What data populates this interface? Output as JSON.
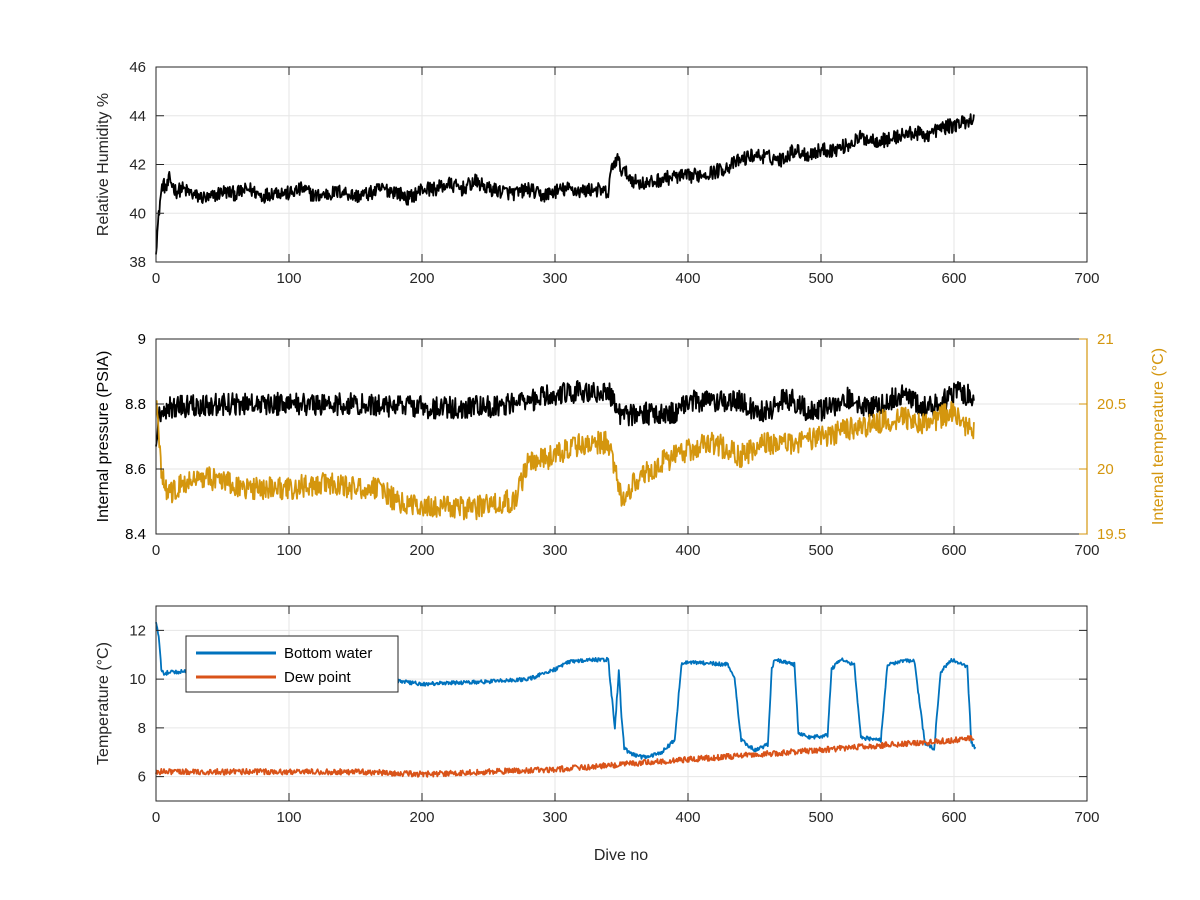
{
  "figure": {
    "xlabel": "Dive no",
    "colors": {
      "black": "#000000",
      "orange_temp": "#D4960E",
      "blue": "#0072BD",
      "red": "#D95319",
      "grid": "#E6E6E6",
      "axes": "#262626"
    }
  },
  "chart_data": [
    {
      "type": "line",
      "ylabel": "Relative Humidity %",
      "xlim": [
        0,
        700
      ],
      "ylim": [
        38,
        46
      ],
      "xticks": [
        0,
        100,
        200,
        300,
        400,
        500,
        600,
        700
      ],
      "xtick_labels": [
        "0",
        "100",
        "200",
        "300",
        "400",
        "500",
        "600",
        "700"
      ],
      "yticks": [
        38,
        40,
        42,
        44,
        46
      ],
      "ytick_labels": [
        "38",
        "40",
        "42",
        "44",
        "46"
      ],
      "grid": true,
      "series": [
        {
          "color": "#000000",
          "x": [
            0,
            1,
            3,
            5,
            8,
            10,
            15,
            20,
            30,
            40,
            50,
            60,
            70,
            80,
            90,
            100,
            110,
            120,
            130,
            140,
            150,
            160,
            170,
            180,
            190,
            200,
            210,
            220,
            230,
            240,
            250,
            260,
            270,
            280,
            290,
            300,
            310,
            320,
            330,
            340,
            343,
            347,
            350,
            360,
            370,
            380,
            390,
            400,
            410,
            420,
            430,
            440,
            450,
            460,
            470,
            480,
            490,
            500,
            510,
            520,
            530,
            540,
            550,
            560,
            570,
            580,
            590,
            600,
            610,
            615
          ],
          "y": [
            38.6,
            39.2,
            40.5,
            41.2,
            41.0,
            41.4,
            40.9,
            41.0,
            40.7,
            40.6,
            40.9,
            40.8,
            41.0,
            40.7,
            40.9,
            40.8,
            41.0,
            40.7,
            40.8,
            40.9,
            40.7,
            40.8,
            41.0,
            40.9,
            40.6,
            41.0,
            41.0,
            41.2,
            41.0,
            41.3,
            41.0,
            40.9,
            40.8,
            41.0,
            40.7,
            40.9,
            41.0,
            40.9,
            41.0,
            40.8,
            42.0,
            42.2,
            41.8,
            41.3,
            41.2,
            41.4,
            41.5,
            41.5,
            41.6,
            41.7,
            41.9,
            42.2,
            42.4,
            42.3,
            42.2,
            42.6,
            42.4,
            42.6,
            42.6,
            42.8,
            43.1,
            43.0,
            43.0,
            43.2,
            43.3,
            43.2,
            43.5,
            43.6,
            43.8,
            43.9
          ],
          "noise": 0.3
        }
      ]
    },
    {
      "type": "line",
      "ylabel": "Internal pressure (PSIA)",
      "ylabel_right": "Internal temperature (°C)",
      "xlim": [
        0,
        700
      ],
      "ylim": [
        8.4,
        9.0
      ],
      "ylim_right": [
        19.5,
        21.0
      ],
      "xticks": [
        0,
        100,
        200,
        300,
        400,
        500,
        600,
        700
      ],
      "xtick_labels": [
        "0",
        "100",
        "200",
        "300",
        "400",
        "500",
        "600",
        "700"
      ],
      "yticks": [
        8.4,
        8.6,
        8.8,
        9.0
      ],
      "ytick_labels": [
        "8.4",
        "8.6",
        "8.8",
        "9"
      ],
      "yticks_right": [
        19.5,
        20.0,
        20.5,
        21.0
      ],
      "ytick_labels_right": [
        "19.5",
        "20",
        "20.5",
        "21"
      ],
      "grid": true,
      "series": [
        {
          "axis": "left",
          "color": "#000000",
          "x": [
            0,
            2,
            5,
            10,
            50,
            100,
            150,
            200,
            250,
            280,
            300,
            320,
            340,
            345,
            350,
            360,
            380,
            390,
            400,
            420,
            440,
            450,
            460,
            470,
            480,
            490,
            500,
            510,
            520,
            530,
            540,
            560,
            580,
            590,
            600,
            610,
            615
          ],
          "y": [
            8.7,
            8.76,
            8.78,
            8.79,
            8.8,
            8.8,
            8.8,
            8.79,
            8.79,
            8.81,
            8.83,
            8.84,
            8.84,
            8.8,
            8.76,
            8.77,
            8.77,
            8.77,
            8.81,
            8.81,
            8.81,
            8.78,
            8.78,
            8.81,
            8.81,
            8.78,
            8.78,
            8.79,
            8.82,
            8.79,
            8.79,
            8.83,
            8.79,
            8.8,
            8.84,
            8.83,
            8.83
          ],
          "noise": 0.035
        },
        {
          "axis": "right",
          "color": "#D4960E",
          "x": [
            0,
            2,
            4,
            6,
            8,
            15,
            30,
            50,
            70,
            100,
            130,
            150,
            170,
            180,
            200,
            220,
            240,
            260,
            270,
            280,
            300,
            320,
            340,
            347,
            350,
            360,
            380,
            400,
            420,
            440,
            460,
            480,
            500,
            520,
            540,
            560,
            580,
            600,
            610,
            615
          ],
          "y": [
            20.6,
            20.2,
            20.0,
            19.9,
            19.8,
            19.85,
            19.95,
            19.9,
            19.85,
            19.85,
            19.9,
            19.85,
            19.85,
            19.75,
            19.7,
            19.7,
            19.7,
            19.75,
            19.75,
            20.05,
            20.1,
            20.2,
            20.2,
            19.9,
            19.75,
            19.9,
            20.05,
            20.15,
            20.2,
            20.1,
            20.2,
            20.2,
            20.25,
            20.3,
            20.35,
            20.4,
            20.35,
            20.45,
            20.3,
            20.3
          ],
          "noise": 0.09
        }
      ]
    },
    {
      "type": "line",
      "ylabel": "Temperature (°C)",
      "xlim": [
        0,
        700
      ],
      "ylim": [
        5,
        13
      ],
      "xticks": [
        0,
        100,
        200,
        300,
        400,
        500,
        600,
        700
      ],
      "xtick_labels": [
        "0",
        "100",
        "200",
        "300",
        "400",
        "500",
        "600",
        "700"
      ],
      "yticks": [
        6,
        8,
        10,
        12
      ],
      "ytick_labels": [
        "6",
        "8",
        "10",
        "12"
      ],
      "grid": true,
      "legend_position": "top-left",
      "series": [
        {
          "name": "Bottom water",
          "color": "#0072BD",
          "x": [
            0,
            2,
            4,
            6,
            10,
            20,
            50,
            100,
            150,
            170,
            200,
            250,
            280,
            290,
            300,
            310,
            330,
            340,
            345,
            348,
            350,
            352,
            355,
            365,
            370,
            380,
            390,
            395,
            400,
            430,
            435,
            440,
            450,
            460,
            463,
            465,
            480,
            483,
            490,
            505,
            508,
            515,
            525,
            530,
            545,
            550,
            570,
            578,
            585,
            590,
            598,
            610,
            613,
            616
          ],
          "y": [
            12.4,
            11.8,
            10.4,
            10.2,
            10.3,
            10.3,
            10.2,
            10.2,
            10.1,
            10.0,
            9.8,
            9.9,
            10.0,
            10.2,
            10.4,
            10.7,
            10.8,
            10.8,
            8.0,
            10.3,
            8.5,
            7.2,
            7.0,
            6.8,
            6.8,
            7.0,
            7.5,
            10.6,
            10.7,
            10.6,
            10.0,
            7.5,
            7.1,
            7.3,
            10.4,
            10.8,
            10.6,
            7.8,
            7.6,
            7.7,
            10.4,
            10.8,
            10.6,
            7.6,
            7.5,
            10.6,
            10.8,
            7.4,
            7.1,
            10.3,
            10.8,
            10.5,
            7.4,
            7.2
          ],
          "noise": 0.08
        },
        {
          "name": "Dew point",
          "color": "#D95319",
          "x": [
            0,
            50,
            100,
            150,
            200,
            250,
            300,
            350,
            400,
            450,
            500,
            550,
            600,
            615
          ],
          "y": [
            6.2,
            6.2,
            6.2,
            6.2,
            6.1,
            6.2,
            6.3,
            6.5,
            6.7,
            6.9,
            7.1,
            7.3,
            7.5,
            7.6
          ],
          "noise": 0.12
        }
      ]
    }
  ]
}
